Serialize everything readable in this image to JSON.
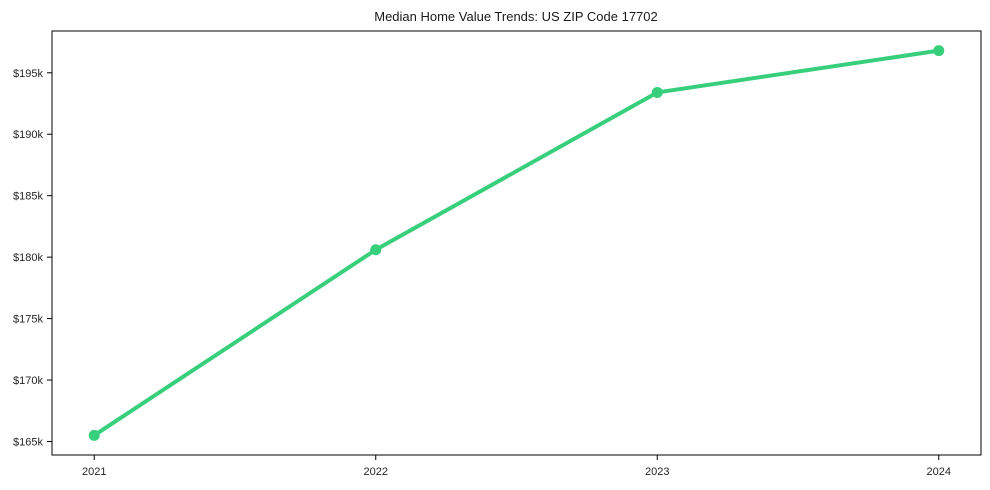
{
  "chart_data": {
    "type": "line",
    "title": "Median Home Value Trends: US ZIP Code 17702",
    "x": [
      2021,
      2022,
      2023,
      2024
    ],
    "x_tick_labels": [
      "2021",
      "2022",
      "2023",
      "2024"
    ],
    "values": [
      165500,
      180600,
      193400,
      196800
    ],
    "y_ticks": [
      165000,
      170000,
      175000,
      180000,
      185000,
      190000,
      195000
    ],
    "y_tick_labels": [
      "$165k",
      "$170k",
      "$175k",
      "$180k",
      "$185k",
      "$190k",
      "$195k"
    ],
    "xlim": [
      2020.85,
      2024.15
    ],
    "ylim": [
      163900,
      198400
    ],
    "grid": false,
    "legend": "none",
    "line_color": "#38cf7c",
    "marker": "circle",
    "frame_color": "#000000",
    "text_color": "#262626",
    "background": "#ffffff"
  }
}
